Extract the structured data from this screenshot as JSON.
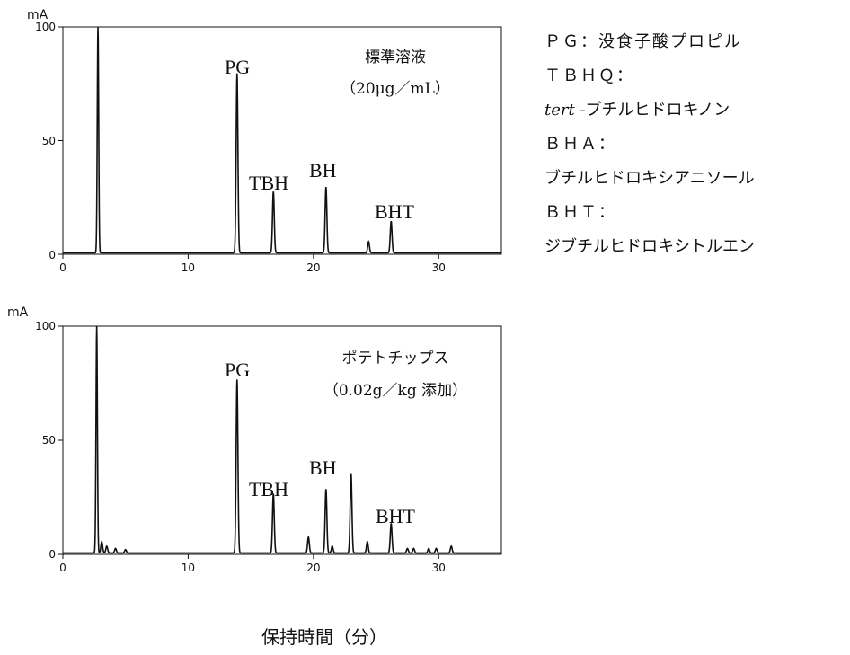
{
  "x_axis_title": "保持時間（分）",
  "legend": {
    "lines": [
      {
        "text": "ＰＧ：没食子酸プロピル"
      },
      {
        "text": "ＴＢＨＱ："
      },
      {
        "text_italic": "tert",
        "text": " -ブチルヒドロキノン"
      },
      {
        "text": "ＢＨＡ："
      },
      {
        "text": "ブチルヒドロキシアニソール"
      },
      {
        "text": "ＢＨＴ："
      },
      {
        "text": "ジブチルヒドロキシトルエン"
      }
    ]
  },
  "chart_data": [
    {
      "type": "line",
      "title": "",
      "xlabel": "",
      "ylabel": "mA",
      "xlim": [
        0,
        35
      ],
      "ylim": [
        0,
        100
      ],
      "xticks": [
        "0",
        "10",
        "20",
        "30"
      ],
      "yticks": [
        "0",
        "50",
        "100"
      ],
      "grid": false,
      "annotation_lines": [
        "標準溶液",
        "（20μg／mL）"
      ],
      "peaks": [
        {
          "label": "",
          "t": 2.8,
          "height": 100
        },
        {
          "label": "PG",
          "t": 13.9,
          "height": 79
        },
        {
          "label": "TBH",
          "t": 16.8,
          "height": 27
        },
        {
          "label": "BH",
          "t": 21.0,
          "height": 29
        },
        {
          "label": "",
          "t": 24.4,
          "height": 5
        },
        {
          "label": "BHT",
          "t": 26.2,
          "height": 14
        }
      ]
    },
    {
      "type": "line",
      "title": "",
      "xlabel": "",
      "ylabel": "mA",
      "xlim": [
        0,
        35
      ],
      "ylim": [
        0,
        100
      ],
      "xticks": [
        "0",
        "10",
        "20",
        "30"
      ],
      "yticks": [
        "0",
        "50",
        "100"
      ],
      "grid": false,
      "annotation_lines": [
        "ポテトチップス",
        "（0.02g／kg 添加）"
      ],
      "peaks": [
        {
          "label": "",
          "t": 2.7,
          "height": 100
        },
        {
          "label": "",
          "t": 3.1,
          "height": 5
        },
        {
          "label": "",
          "t": 3.5,
          "height": 3
        },
        {
          "label": "",
          "t": 4.2,
          "height": 2
        },
        {
          "label": "",
          "t": 5.0,
          "height": 1.5
        },
        {
          "label": "PG",
          "t": 13.9,
          "height": 76
        },
        {
          "label": "TBH",
          "t": 16.8,
          "height": 26
        },
        {
          "label": "",
          "t": 19.6,
          "height": 7
        },
        {
          "label": "BH",
          "t": 21.0,
          "height": 28
        },
        {
          "label": "",
          "t": 21.5,
          "height": 3
        },
        {
          "label": "",
          "t": 23.0,
          "height": 35
        },
        {
          "label": "",
          "t": 24.3,
          "height": 5
        },
        {
          "label": "BHT",
          "t": 26.2,
          "height": 13
        },
        {
          "label": "",
          "t": 27.5,
          "height": 2
        },
        {
          "label": "",
          "t": 28.0,
          "height": 2
        },
        {
          "label": "",
          "t": 29.2,
          "height": 2
        },
        {
          "label": "",
          "t": 29.8,
          "height": 2
        },
        {
          "label": "",
          "t": 31.0,
          "height": 3
        }
      ]
    }
  ]
}
